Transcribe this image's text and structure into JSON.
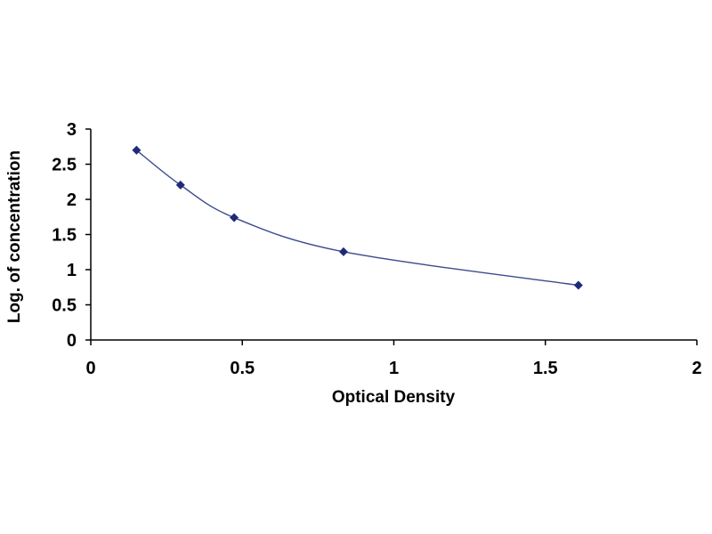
{
  "chart_data": {
    "type": "scatter",
    "title": "",
    "xlabel": "Optical Density",
    "ylabel": "Log. of concentration",
    "xlim": [
      0,
      2
    ],
    "ylim": [
      0,
      3
    ],
    "x_ticks": [
      "0",
      "0.5",
      "1",
      "1.5",
      "2"
    ],
    "y_ticks": [
      "0",
      "0.5",
      "1",
      "1.5",
      "2",
      "2.5",
      "3"
    ],
    "grid": false,
    "legend": "none",
    "series": [
      {
        "x": [
          0.151,
          0.296,
          0.473,
          0.834,
          1.609
        ],
        "y": [
          2.699,
          2.204,
          1.74,
          1.255,
          0.778
        ],
        "marker": "diamond",
        "smooth_line": true
      }
    ],
    "colors": {
      "marker": "#1f2a78",
      "line": "#3c4a8f",
      "axis": "#000000"
    }
  }
}
